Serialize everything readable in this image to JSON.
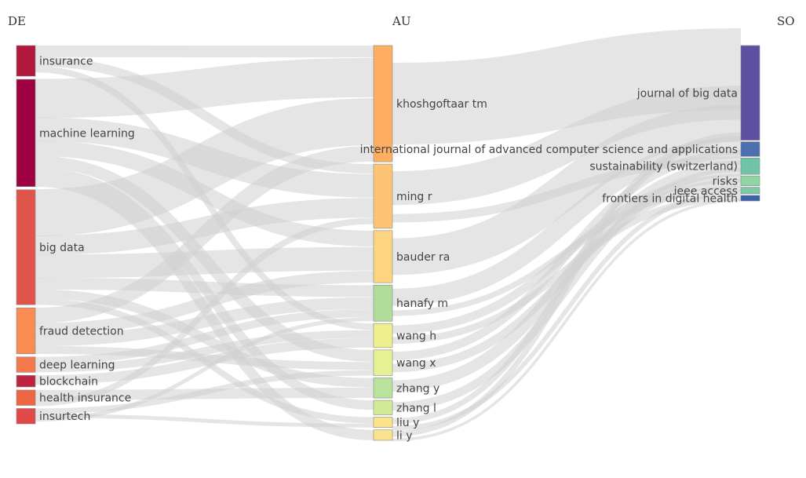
{
  "columns": [
    "DE",
    "AU",
    "SO"
  ],
  "nodes": {
    "DE": [
      {
        "label": "insurance",
        "value": 4,
        "color": "#b2183c"
      },
      {
        "label": "machine learning",
        "value": 14,
        "color": "#9e0142"
      },
      {
        "label": "big data",
        "value": 15,
        "color": "#e05549"
      },
      {
        "label": "fraud detection",
        "value": 6,
        "color": "#f88c52"
      },
      {
        "label": "deep learning",
        "value": 2,
        "color": "#f47a4d"
      },
      {
        "label": "blockchain",
        "value": 1.5,
        "color": "#c0233f"
      },
      {
        "label": "health insurance",
        "value": 2,
        "color": "#ee6543"
      },
      {
        "label": "insurtech",
        "value": 2,
        "color": "#e14848"
      }
    ],
    "AU": [
      {
        "label": "khoshgoftaar tm",
        "value": 14.5,
        "color": "#fdae61"
      },
      {
        "label": "ming r",
        "value": 8,
        "color": "#fec475"
      },
      {
        "label": "bauder ra",
        "value": 6.5,
        "color": "#fed480"
      },
      {
        "label": "hanafy m",
        "value": 4.5,
        "color": "#b1dc9a"
      },
      {
        "label": "wang h",
        "value": 3,
        "color": "#eef08e"
      },
      {
        "label": "wang x",
        "value": 3.2,
        "color": "#e4f294"
      },
      {
        "label": "zhang y",
        "value": 2.5,
        "color": "#b9e29c"
      },
      {
        "label": "zhang l",
        "value": 1.8,
        "color": "#d2ea96"
      },
      {
        "label": "liu y",
        "value": 1.3,
        "color": "#fae38a"
      },
      {
        "label": "li y",
        "value": 1.3,
        "color": "#fbe28c"
      }
    ],
    "SO": [
      {
        "label": "journal of big data",
        "value": 29,
        "color": "#5e4fa2"
      },
      {
        "label": "international journal of advanced computer science and applications",
        "value": 4.5,
        "color": "#4b6fb0"
      },
      {
        "label": "sustainability (switzerland)",
        "value": 5,
        "color": "#6ec4a4"
      },
      {
        "label": "risks",
        "value": 3,
        "color": "#8fd5a3"
      },
      {
        "label": "ieee access",
        "value": 2,
        "color": "#7cc9a5"
      },
      {
        "label": "frontiers in digital health",
        "value": 1.7,
        "color": "#3b63a8"
      }
    ]
  },
  "links": [
    {
      "s": [
        "DE",
        0
      ],
      "t": [
        "AU",
        0
      ],
      "w": 1.5
    },
    {
      "s": [
        "DE",
        0
      ],
      "t": [
        "AU",
        1
      ],
      "w": 1.2
    },
    {
      "s": [
        "DE",
        0
      ],
      "t": [
        "AU",
        4
      ],
      "w": 0.8
    },
    {
      "s": [
        "DE",
        1
      ],
      "t": [
        "AU",
        0
      ],
      "w": 5
    },
    {
      "s": [
        "DE",
        1
      ],
      "t": [
        "AU",
        1
      ],
      "w": 3
    },
    {
      "s": [
        "DE",
        1
      ],
      "t": [
        "AU",
        2
      ],
      "w": 2
    },
    {
      "s": [
        "DE",
        1
      ],
      "t": [
        "AU",
        5
      ],
      "w": 1.5
    },
    {
      "s": [
        "DE",
        1
      ],
      "t": [
        "AU",
        7
      ],
      "w": 1.2
    },
    {
      "s": [
        "DE",
        1
      ],
      "t": [
        "AU",
        9
      ],
      "w": 1.3
    },
    {
      "s": [
        "DE",
        2
      ],
      "t": [
        "AU",
        0
      ],
      "w": 6
    },
    {
      "s": [
        "DE",
        2
      ],
      "t": [
        "AU",
        1
      ],
      "w": 2.5
    },
    {
      "s": [
        "DE",
        2
      ],
      "t": [
        "AU",
        2
      ],
      "w": 3
    },
    {
      "s": [
        "DE",
        2
      ],
      "t": [
        "AU",
        3
      ],
      "w": 1.5
    },
    {
      "s": [
        "DE",
        2
      ],
      "t": [
        "AU",
        6
      ],
      "w": 1.2
    },
    {
      "s": [
        "DE",
        2
      ],
      "t": [
        "AU",
        8
      ],
      "w": 0.8
    },
    {
      "s": [
        "DE",
        3
      ],
      "t": [
        "AU",
        0
      ],
      "w": 2
    },
    {
      "s": [
        "DE",
        3
      ],
      "t": [
        "AU",
        2
      ],
      "w": 1.5
    },
    {
      "s": [
        "DE",
        3
      ],
      "t": [
        "AU",
        3
      ],
      "w": 1.5
    },
    {
      "s": [
        "DE",
        3
      ],
      "t": [
        "AU",
        5
      ],
      "w": 1
    },
    {
      "s": [
        "DE",
        4
      ],
      "t": [
        "AU",
        3
      ],
      "w": 1
    },
    {
      "s": [
        "DE",
        4
      ],
      "t": [
        "AU",
        4
      ],
      "w": 1
    },
    {
      "s": [
        "DE",
        5
      ],
      "t": [
        "AU",
        4
      ],
      "w": 1.2
    },
    {
      "s": [
        "DE",
        6
      ],
      "t": [
        "AU",
        6
      ],
      "w": 1.3
    },
    {
      "s": [
        "DE",
        6
      ],
      "t": [
        "AU",
        1
      ],
      "w": 0.8
    },
    {
      "s": [
        "DE",
        7
      ],
      "t": [
        "AU",
        5
      ],
      "w": 0.7
    },
    {
      "s": [
        "DE",
        7
      ],
      "t": [
        "AU",
        8
      ],
      "w": 0.5
    },
    {
      "s": [
        "DE",
        7
      ],
      "t": [
        "AU",
        3
      ],
      "w": 0.5
    },
    {
      "s": [
        "AU",
        0
      ],
      "t": [
        "SO",
        0
      ],
      "w": 14.5
    },
    {
      "s": [
        "AU",
        1
      ],
      "t": [
        "SO",
        0
      ],
      "w": 6
    },
    {
      "s": [
        "AU",
        1
      ],
      "t": [
        "SO",
        2
      ],
      "w": 1.5
    },
    {
      "s": [
        "AU",
        2
      ],
      "t": [
        "SO",
        0
      ],
      "w": 6.5
    },
    {
      "s": [
        "AU",
        3
      ],
      "t": [
        "SO",
        1
      ],
      "w": 3
    },
    {
      "s": [
        "AU",
        3
      ],
      "t": [
        "SO",
        4
      ],
      "w": 1
    },
    {
      "s": [
        "AU",
        4
      ],
      "t": [
        "SO",
        3
      ],
      "w": 1.5
    },
    {
      "s": [
        "AU",
        4
      ],
      "t": [
        "SO",
        5
      ],
      "w": 1.2
    },
    {
      "s": [
        "AU",
        5
      ],
      "t": [
        "SO",
        1
      ],
      "w": 1.5
    },
    {
      "s": [
        "AU",
        5
      ],
      "t": [
        "SO",
        3
      ],
      "w": 1.5
    },
    {
      "s": [
        "AU",
        6
      ],
      "t": [
        "SO",
        2
      ],
      "w": 2
    },
    {
      "s": [
        "AU",
        7
      ],
      "t": [
        "SO",
        2
      ],
      "w": 1.5
    },
    {
      "s": [
        "AU",
        8
      ],
      "t": [
        "SO",
        0
      ],
      "w": 1
    },
    {
      "s": [
        "AU",
        8
      ],
      "t": [
        "SO",
        4
      ],
      "w": 0.8
    },
    {
      "s": [
        "AU",
        9
      ],
      "t": [
        "SO",
        0
      ],
      "w": 1
    },
    {
      "s": [
        "AU",
        9
      ],
      "t": [
        "SO",
        5
      ],
      "w": 0.5
    }
  ]
}
